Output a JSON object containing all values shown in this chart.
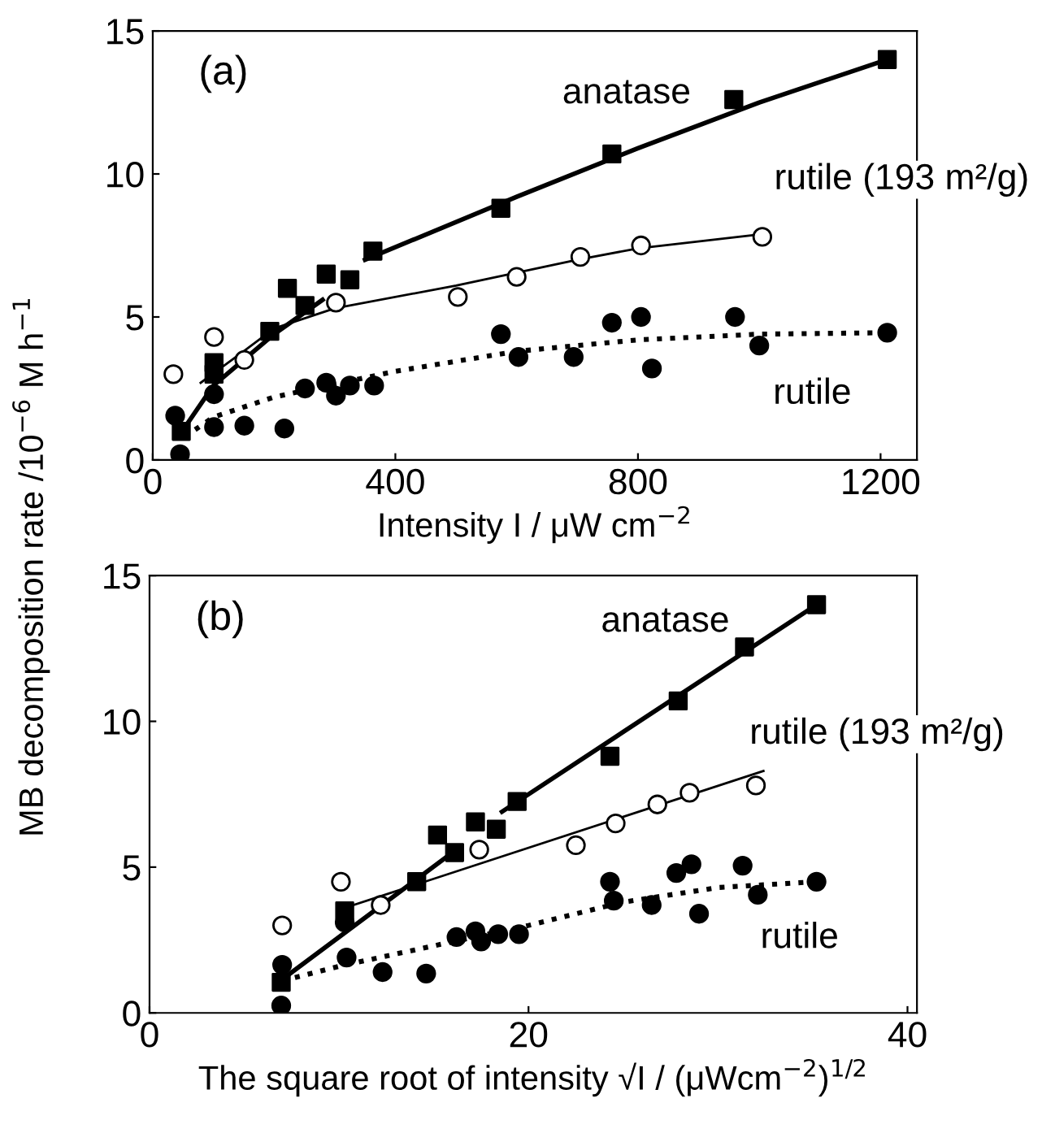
{
  "chart_data": [
    {
      "type": "scatter",
      "xlabel": "Intensity I / μW cm$^{−2}$",
      "ylabel": "MB decomposition rate /10$^{−6}$ M h$^{−1}$",
      "xlim": [
        0,
        1260
      ],
      "ylim": [
        0,
        15
      ],
      "xticks": [
        0,
        400,
        800,
        1200
      ],
      "yticks": [
        0,
        5,
        10,
        15
      ],
      "grid": false,
      "legend": false,
      "annotations": [
        "(a)",
        "anatase",
        "rutile (193 m²/g)",
        "rutile"
      ],
      "series": [
        {
          "marker": "square",
          "color": "#000000",
          "x": [
            47,
            101,
            101,
            193,
            222,
            251,
            286,
            325,
            363,
            574,
            757,
            958,
            1211
          ],
          "values": [
            1.0,
            3.4,
            3.0,
            4.5,
            6.0,
            5.4,
            6.5,
            6.3,
            7.3,
            8.8,
            10.7,
            12.6,
            14.0
          ]
        },
        {
          "marker": "circle",
          "color": "#ffffff",
          "x": [
            34,
            101,
            151,
            302,
            503,
            600,
            705,
            805,
            1005
          ],
          "values": [
            3.0,
            4.3,
            3.5,
            5.5,
            5.7,
            6.4,
            7.1,
            7.5,
            7.8
          ]
        },
        {
          "marker": "circle",
          "color": "#000000",
          "x": [
            37,
            45,
            101,
            101,
            151,
            217,
            251,
            286,
            302,
            325,
            365,
            574,
            603,
            694,
            757,
            805,
            823,
            960,
            1000,
            1211
          ],
          "values": [
            1.55,
            0.2,
            2.3,
            1.15,
            1.2,
            1.1,
            2.5,
            2.7,
            2.25,
            2.6,
            2.6,
            4.4,
            3.6,
            3.6,
            4.8,
            5.0,
            3.2,
            5.0,
            4.0,
            4.45
          ]
        },
        {
          "type": "line",
          "marker": "none",
          "line_style": "solid",
          "color": "#000000",
          "x": [
            45,
            100,
            200,
            280,
            315,
            350,
            600,
            800,
            1000,
            1211
          ],
          "values": [
            0.9,
            2.6,
            4.4,
            5.6,
            null,
            7.0,
            9.2,
            10.9,
            12.5,
            14.0
          ]
        },
        {
          "type": "line",
          "marker": "none",
          "line_style": "solid",
          "color": "#000000",
          "x": [
            79,
            150,
            200,
            300,
            500,
            700,
            800,
            1005
          ],
          "values": [
            2.7,
            3.8,
            4.6,
            5.3,
            6.1,
            7.0,
            7.4,
            7.9
          ]
        },
        {
          "type": "line",
          "marker": "none",
          "line_style": "dotted",
          "color": "#000000",
          "x": [
            52,
            100,
            200,
            400,
            600,
            800,
            1000,
            1211
          ],
          "values": [
            0.8,
            1.5,
            2.2,
            3.1,
            3.8,
            4.2,
            4.4,
            4.45
          ]
        }
      ]
    },
    {
      "type": "scatter",
      "xlabel": "The square root of intensity √I / (μWcm$^{−2}$)$^{1/2}$",
      "xlim": [
        0,
        40.5
      ],
      "ylim": [
        0,
        15
      ],
      "xticks": [
        0,
        20,
        40
      ],
      "yticks": [
        0,
        5,
        10,
        15
      ],
      "grid": false,
      "legend": false,
      "annotations": [
        "(b)",
        "anatase",
        "rutile (193 m²/g)",
        "rutile"
      ],
      "series": [
        {
          "marker": "square",
          "color": "#000000",
          "x": [
            6.95,
            10.3,
            14.1,
            15.2,
            16.1,
            17.2,
            18.3,
            19.4,
            24.3,
            27.9,
            31.4,
            35.2
          ],
          "values": [
            1.05,
            3.5,
            4.5,
            6.1,
            5.5,
            6.55,
            6.3,
            7.25,
            8.8,
            10.7,
            12.55,
            14.0
          ]
        },
        {
          "marker": "circle",
          "color": "#ffffff",
          "x": [
            7.0,
            10.1,
            12.2,
            17.4,
            22.5,
            24.6,
            26.8,
            28.5,
            32.0
          ],
          "values": [
            3.0,
            4.5,
            3.7,
            5.6,
            5.75,
            6.5,
            7.15,
            7.55,
            7.8
          ]
        },
        {
          "marker": "circle",
          "color": "#000000",
          "x": [
            7.0,
            6.95,
            10.3,
            10.4,
            12.3,
            14.6,
            16.2,
            17.2,
            17.5,
            18.4,
            19.5,
            24.3,
            24.5,
            26.5,
            27.8,
            28.6,
            29.0,
            31.3,
            32.1,
            35.2
          ],
          "values": [
            1.65,
            0.25,
            3.1,
            1.9,
            1.4,
            1.35,
            2.6,
            2.8,
            2.45,
            2.7,
            2.7,
            4.5,
            3.85,
            3.7,
            4.8,
            5.1,
            3.4,
            5.05,
            4.05,
            4.5
          ]
        },
        {
          "type": "line",
          "marker": "none",
          "line_style": "solid",
          "color": "#000000",
          "x": [
            6.9,
            16.4,
            17.5,
            18.6,
            35.2
          ],
          "values": [
            1.1,
            5.7,
            null,
            6.9,
            14.0
          ]
        },
        {
          "type": "line",
          "marker": "none",
          "line_style": "solid",
          "color": "#000000",
          "x": [
            10.3,
            32.4
          ],
          "values": [
            3.6,
            8.3
          ]
        },
        {
          "type": "line",
          "marker": "none",
          "line_style": "dotted",
          "color": "#000000",
          "x": [
            7.0,
            10,
            15,
            20,
            25,
            30,
            35.2
          ],
          "values": [
            1.1,
            1.6,
            2.3,
            3.0,
            3.8,
            4.3,
            4.5
          ]
        }
      ]
    }
  ]
}
